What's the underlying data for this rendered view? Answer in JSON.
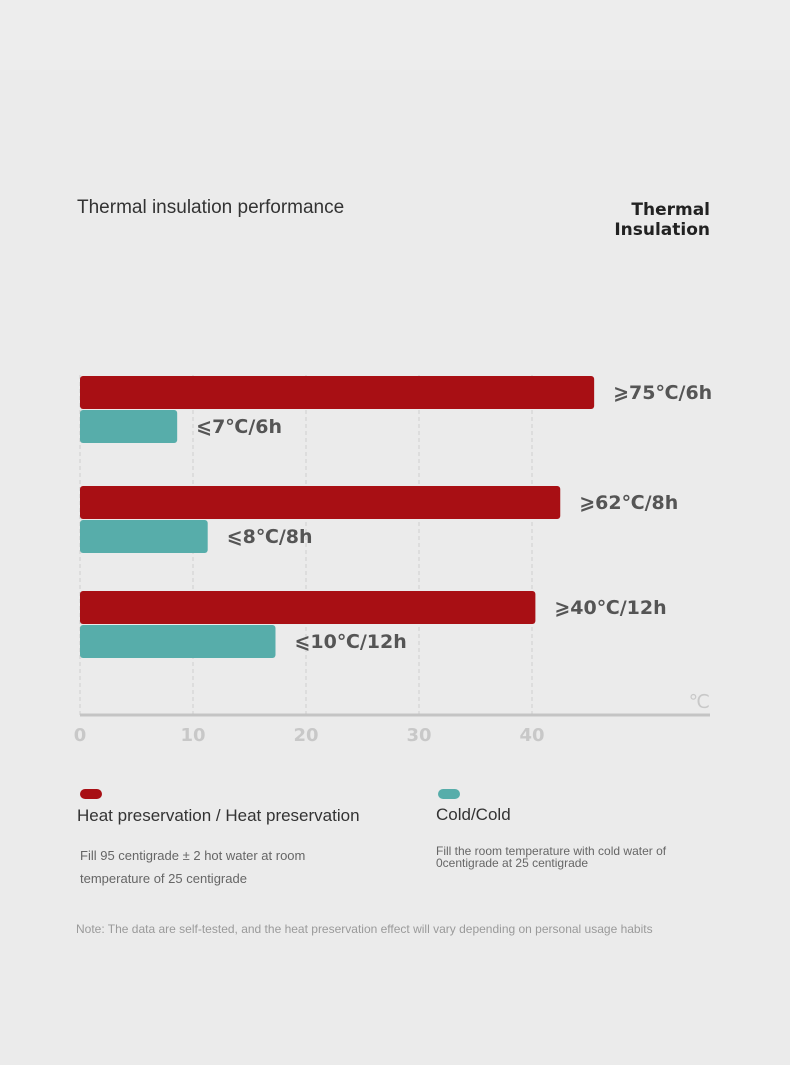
{
  "header": {
    "title": "Thermal insulation performance",
    "brand_line1": "Thermal",
    "brand_line2": "Insulation"
  },
  "chart_data": {
    "type": "bar",
    "orientation": "horizontal",
    "unit": "℃",
    "xticks": [
      "0",
      "10",
      "20",
      "30",
      "40"
    ],
    "xlim": [
      0,
      56
    ],
    "grid": true,
    "series": [
      {
        "name": "Heat preservation / Heat preservation",
        "color": "#a80f14",
        "values": [
          45.5,
          42.5,
          40.3
        ],
        "labels": [
          "⩾75℃/6h",
          "⩾62℃/8h",
          "⩾40℃/12h"
        ]
      },
      {
        "name": "Cold/Cold",
        "color": "#57adaa",
        "values": [
          8.6,
          11.3,
          17.3
        ],
        "labels": [
          "⩽7℃/6h",
          "⩽8℃/8h",
          "⩽10℃/12h"
        ]
      }
    ]
  },
  "legend": {
    "heat_label": "Heat preservation / Heat preservation",
    "heat_desc_line1": "Fill 95 centigrade ± 2 hot water at room",
    "heat_desc_line2": "temperature of 25 centigrade",
    "cold_label": "Cold/Cold",
    "cold_desc_line1": "Fill the room temperature with cold water of",
    "cold_desc_line2": "0centigrade at 25 centigrade"
  },
  "note": "Note: The data are self-tested, and the heat preservation effect will vary depending on personal usage habits"
}
